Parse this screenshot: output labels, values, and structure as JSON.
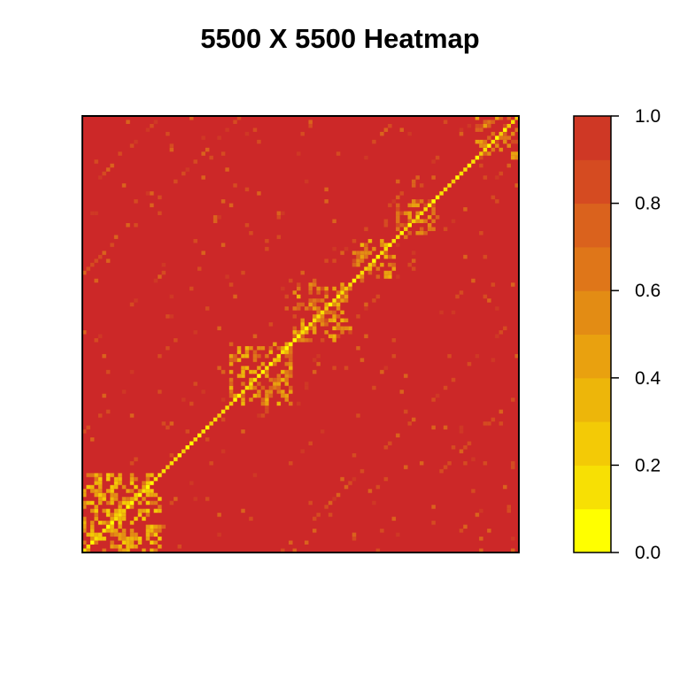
{
  "chart_data": {
    "type": "heatmap",
    "title": "5500 X 5500 Heatmap",
    "xlabel": "",
    "ylabel": "",
    "matrix_size": [
      5500,
      5500
    ],
    "value_range": [
      0.0,
      1.0
    ],
    "diagonal_value": 0.0,
    "dominant_value": 1.0,
    "colorbar": {
      "breaks": [
        0.0,
        0.1,
        0.2,
        0.3,
        0.4,
        0.5,
        0.6,
        0.7,
        0.8,
        0.9,
        1.0
      ],
      "colors": [
        "#FFFF00",
        "#F7E004",
        "#F3CA06",
        "#EDB60A",
        "#E9A10F",
        "#E38C14",
        "#DF7619",
        "#DA621D",
        "#D54B21",
        "#CF3825"
      ],
      "tick_values": [
        0.0,
        0.2,
        0.4,
        0.6,
        0.8,
        1.0
      ],
      "tick_labels": [
        "0.0",
        "0.2",
        "0.4",
        "0.6",
        "0.8",
        "1.0"
      ]
    },
    "background_color": "#CC2828",
    "blocks": [
      {
        "start": 0.0,
        "end": 0.18,
        "value": 0.55
      },
      {
        "start": 0.34,
        "end": 0.48,
        "value": 0.65
      },
      {
        "start": 0.48,
        "end": 0.62,
        "value": 0.7
      },
      {
        "start": 0.62,
        "end": 0.72,
        "value": 0.7
      },
      {
        "start": 0.72,
        "end": 0.81,
        "value": 0.75
      },
      {
        "start": 0.9,
        "end": 1.0,
        "value": 0.75
      }
    ],
    "grid": false,
    "legend": "right"
  }
}
